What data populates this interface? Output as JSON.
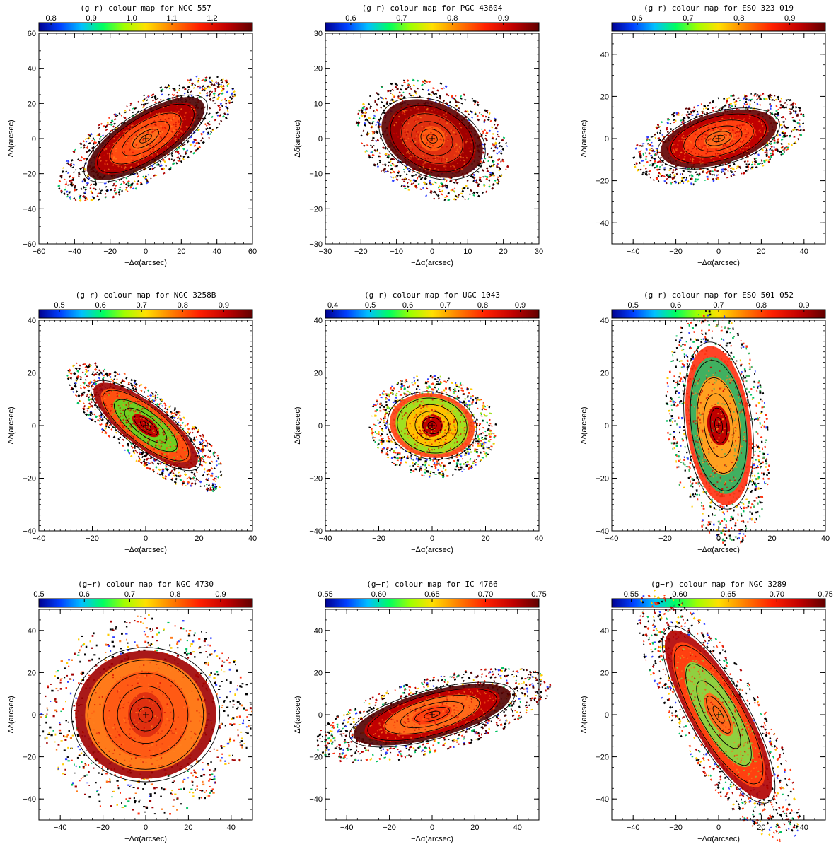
{
  "chart_data": [
    {
      "type": "heatmap",
      "title": "(g−r) colour map for NGC 557",
      "xlabel": "−Δα(arcsec)",
      "ylabel": "Δδ(arcsec)",
      "xlim": [
        -60,
        60
      ],
      "ylim": [
        -60,
        60
      ],
      "xticks": [
        -60,
        -40,
        -20,
        0,
        20,
        40,
        60
      ],
      "yticks": [
        -60,
        -40,
        -20,
        0,
        20,
        40,
        60
      ],
      "colorbar": {
        "range": [
          0.77,
          1.3
        ],
        "ticks": [
          0.8,
          0.9,
          1.0,
          1.1,
          1.2
        ]
      },
      "galaxy": {
        "a": 38,
        "b": 14,
        "pa_deg": 32,
        "core": "#ff6a1a",
        "inner": "#ff4a10",
        "outer": "#b00000",
        "halo": "#4a0000"
      }
    },
    {
      "type": "heatmap",
      "title": "(g−r) colour map for PGC 43604",
      "xlabel": "−Δα(arcsec)",
      "ylabel": "Δδ(arcsec)",
      "xlim": [
        -30,
        30
      ],
      "ylim": [
        -30,
        30
      ],
      "xticks": [
        -30,
        -20,
        -10,
        0,
        10,
        20,
        30
      ],
      "yticks": [
        -30,
        -20,
        -10,
        0,
        10,
        20,
        30
      ],
      "colorbar": {
        "range": [
          0.55,
          0.97
        ],
        "ticks": [
          0.6,
          0.7,
          0.8,
          0.9
        ]
      },
      "galaxy": {
        "a": 15,
        "b": 10,
        "pa_deg": -25,
        "core": "#ff5a12",
        "inner": "#e03010",
        "outer": "#a00000",
        "halo": "#5a0000"
      }
    },
    {
      "type": "heatmap",
      "title": "(g−r) colour map for ESO 323−019",
      "xlabel": "−Δα(arcsec)",
      "ylabel": "Δδ(arcsec)",
      "xlim": [
        -50,
        50
      ],
      "ylim": [
        -50,
        50
      ],
      "xticks": [
        -40,
        -20,
        0,
        20,
        40
      ],
      "yticks": [
        -40,
        -20,
        0,
        20,
        40
      ],
      "colorbar": {
        "range": [
          0.55,
          0.97
        ],
        "ticks": [
          0.6,
          0.7,
          0.8,
          0.9
        ]
      },
      "galaxy": {
        "a": 28,
        "b": 12,
        "pa_deg": 15,
        "core": "#ff6a1a",
        "inner": "#ff4010",
        "outer": "#c00000",
        "halo": "#600000"
      }
    },
    {
      "type": "heatmap",
      "title": "(g−r) colour map for NGC 3258B",
      "xlabel": "−Δα(arcsec)",
      "ylabel": "Δδ(arcsec)",
      "xlim": [
        -40,
        40
      ],
      "ylim": [
        -40,
        40
      ],
      "xticks": [
        -40,
        -20,
        0,
        20,
        40
      ],
      "yticks": [
        -40,
        -20,
        0,
        20,
        40
      ],
      "colorbar": {
        "range": [
          0.45,
          0.97
        ],
        "ticks": [
          0.5,
          0.6,
          0.7,
          0.8,
          0.9
        ]
      },
      "galaxy": {
        "a": 24,
        "b": 8,
        "pa_deg": -38,
        "core": "#c00000",
        "inner": "#6fd020",
        "outer": "#ff5010",
        "halo": "#a00000"
      }
    },
    {
      "type": "heatmap",
      "title": "(g−r) colour map for UGC 1043",
      "xlabel": "−Δα(arcsec)",
      "ylabel": "Δδ(arcsec)",
      "xlim": [
        -40,
        40
      ],
      "ylim": [
        -40,
        40
      ],
      "xticks": [
        -40,
        -20,
        0,
        20,
        40
      ],
      "yticks": [
        -40,
        -20,
        0,
        20,
        40
      ],
      "colorbar": {
        "range": [
          0.38,
          0.95
        ],
        "ticks": [
          0.4,
          0.5,
          0.6,
          0.7,
          0.8,
          0.9
        ]
      },
      "galaxy": {
        "a": 16,
        "b": 12,
        "pa_deg": -10,
        "core": "#c00000",
        "inner": "#ffc000",
        "outer": "#a0e020",
        "halo": "#ff4010"
      }
    },
    {
      "type": "heatmap",
      "title": "(g−r) colour map for ESO 501−052",
      "xlabel": "−Δα(arcsec)",
      "ylabel": "Δδ(arcsec)",
      "xlim": [
        -40,
        40
      ],
      "ylim": [
        -40,
        40
      ],
      "xticks": [
        -40,
        -20,
        0,
        20,
        40
      ],
      "yticks": [
        -40,
        -20,
        0,
        20,
        40
      ],
      "colorbar": {
        "range": [
          0.45,
          0.95
        ],
        "ticks": [
          0.5,
          0.6,
          0.7,
          0.8,
          0.9
        ]
      },
      "galaxy": {
        "a": 30,
        "b": 12,
        "pa_deg": -83,
        "core": "#c00000",
        "inner": "#ffa020",
        "outer": "#40b060",
        "halo": "#ff3010"
      }
    },
    {
      "type": "heatmap",
      "title": "(g−r) colour map for NGC 4730",
      "xlabel": "−Δα(arcsec)",
      "ylabel": "Δδ(arcsec)",
      "xlim": [
        -50,
        50
      ],
      "ylim": [
        -50,
        50
      ],
      "xticks": [
        -40,
        -20,
        0,
        20,
        40
      ],
      "yticks": [
        -40,
        -20,
        0,
        20,
        40
      ],
      "colorbar": {
        "range": [
          0.5,
          0.97
        ],
        "ticks": [
          0.5,
          0.6,
          0.7,
          0.8,
          0.9
        ]
      },
      "galaxy": {
        "a": 33,
        "b": 30,
        "pa_deg": 0,
        "core": "#e03010",
        "inner": "#ff5a14",
        "outer": "#ff7a1a",
        "halo": "#a00000"
      }
    },
    {
      "type": "heatmap",
      "title": "(g−r) colour map for IC 4766",
      "xlabel": "−Δα(arcsec)",
      "ylabel": "Δδ(arcsec)",
      "xlim": [
        -50,
        50
      ],
      "ylim": [
        -50,
        50
      ],
      "xticks": [
        -40,
        -20,
        0,
        20,
        40
      ],
      "yticks": [
        -40,
        -20,
        0,
        20,
        40
      ],
      "colorbar": {
        "range": [
          0.55,
          0.75
        ],
        "ticks": [
          "0.55",
          "0.60",
          "0.65",
          "0.70",
          "0.75"
        ]
      },
      "galaxy": {
        "a": 38,
        "b": 11,
        "pa_deg": 15,
        "core": "#ff4010",
        "inner": "#ff6a1a",
        "outer": "#c00000",
        "halo": "#500000"
      }
    },
    {
      "type": "heatmap",
      "title": "(g−r) colour map for NGC 3289",
      "xlabel": "−Δα(arcsec)",
      "ylabel": "Δδ(arcsec)",
      "xlim": [
        -50,
        50
      ],
      "ylim": [
        -50,
        50
      ],
      "xticks": [
        -40,
        -20,
        0,
        20,
        40
      ],
      "yticks": [
        -40,
        -20,
        0,
        20,
        40
      ],
      "colorbar": {
        "range": [
          0.53,
          0.75
        ],
        "ticks": [
          "0.55",
          "0.60",
          "0.65",
          "0.70",
          "0.75"
        ]
      },
      "galaxy": {
        "a": 45,
        "b": 13,
        "pa_deg": -60,
        "core": "#ff6a1a",
        "inner": "#90d040",
        "outer": "#ff4010",
        "halo": "#b00000"
      }
    }
  ]
}
